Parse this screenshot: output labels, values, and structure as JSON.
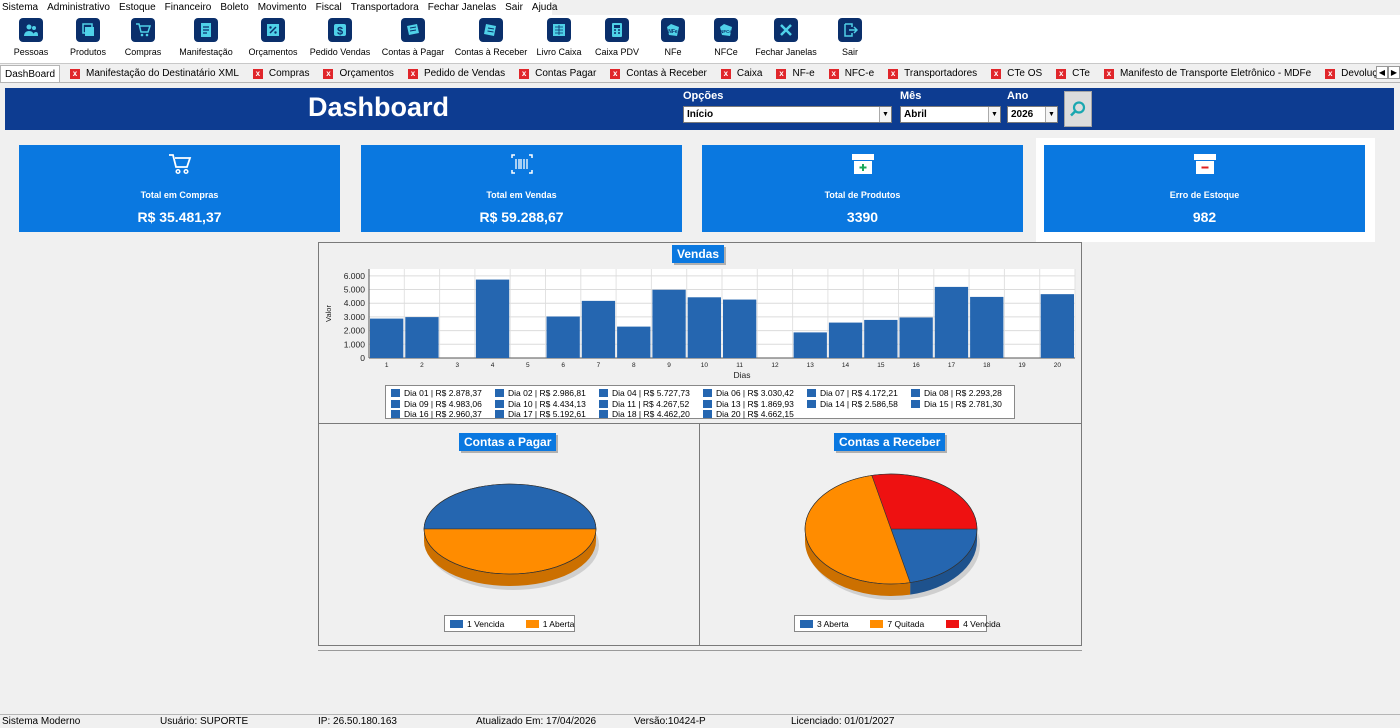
{
  "menu": [
    "Sistema",
    "Administrativo",
    "Estoque",
    "Financeiro",
    "Boleto",
    "Movimento",
    "Fiscal",
    "Transportadora",
    "Fechar Janelas",
    "Sair",
    "Ajuda"
  ],
  "toolbar": [
    {
      "label": "Pessoas",
      "icon": "people-icon"
    },
    {
      "label": "Produtos",
      "icon": "products-icon"
    },
    {
      "label": "Compras",
      "icon": "cart-icon"
    },
    {
      "label": "Manifestação",
      "icon": "document-icon"
    },
    {
      "label": "Orçamentos",
      "icon": "percent-icon"
    },
    {
      "label": "Pedido Vendas",
      "icon": "dollar-icon"
    },
    {
      "label": "Contas à Pagar",
      "icon": "bills-icon"
    },
    {
      "label": "Contas à Receber",
      "icon": "receivable-icon"
    },
    {
      "label": "Livro Caixa",
      "icon": "ledger-icon"
    },
    {
      "label": "Caixa PDV",
      "icon": "calculator-icon"
    },
    {
      "label": "NFe",
      "icon": "nfe-icon"
    },
    {
      "label": "NFCe",
      "icon": "nfce-icon"
    },
    {
      "label": "Fechar Janelas",
      "icon": "close-windows-icon"
    },
    {
      "label": "Sair",
      "icon": "exit-icon"
    }
  ],
  "tabs": [
    "DashBoard",
    "Manifestação do Destinatário XML",
    "Compras",
    "Orçamentos",
    "Pedido de Vendas",
    "Contas Pagar",
    "Contas à Receber",
    "Caixa",
    "NF-e",
    "NFC-e",
    "Transportadores",
    "CTe OS",
    "CTe",
    "Manifesto de Transporte Eletrônico - MDFe",
    "Devolução de Venda"
  ],
  "header": {
    "title": "Dashboard",
    "opcoes_label": "Opções",
    "opcoes_value": "Início",
    "mes_label": "Mês",
    "mes_value": "Abril",
    "ano_label": "Ano",
    "ano_value": "2026"
  },
  "cards": [
    {
      "label": "Total em Compras",
      "value": "R$ 35.481,37",
      "icon": "cart-icon"
    },
    {
      "label": "Total em Vendas",
      "value": "R$ 59.288,67",
      "icon": "barcode-icon"
    },
    {
      "label": "Total de Produtos",
      "value": "3390",
      "icon": "box-plus-icon"
    },
    {
      "label": "Erro de Estoque",
      "value": "982",
      "icon": "box-minus-icon"
    }
  ],
  "colors": {
    "header": "#0d3c91",
    "card": "#0a78e0",
    "bar": "#2566b0",
    "orange": "#ff8c00",
    "red": "#ee1111"
  },
  "chart_data": [
    {
      "type": "bar",
      "title": "Vendas",
      "xlabel": "Dias",
      "ylabel": "Valor",
      "ylim": [
        0,
        6500
      ],
      "yticks": [
        "0",
        "1.000",
        "2.000",
        "3.000",
        "4.000",
        "5.000",
        "6.000"
      ],
      "categories": [
        "1",
        "2",
        "3",
        "4",
        "5",
        "6",
        "7",
        "8",
        "9",
        "10",
        "11",
        "12",
        "13",
        "14",
        "15",
        "16",
        "17",
        "18",
        "19",
        "20"
      ],
      "values": [
        2878.37,
        2986.81,
        0,
        5727.73,
        0,
        3030.42,
        4172.21,
        2293.28,
        4983.06,
        4434.13,
        4267.52,
        0,
        1869.93,
        2586.58,
        2781.3,
        2960.37,
        5192.61,
        4462.2,
        0,
        4662.15
      ],
      "legend": [
        "Dia 01 | R$ 2.878,37",
        "Dia 02 | R$ 2.986,81",
        "Dia 04 | R$ 5.727,73",
        "Dia 06 | R$ 3.030,42",
        "Dia 07 | R$ 4.172,21",
        "Dia 08 | R$ 2.293,28",
        "Dia 09 | R$ 4.983,06",
        "Dia 10 | R$ 4.434,13",
        "Dia 11 | R$ 4.267,52",
        "Dia 13 | R$ 1.869,93",
        "Dia 14 | R$ 2.586,58",
        "Dia 15 | R$ 2.781,30",
        "Dia 16 | R$ 2.960,37",
        "Dia 17 | R$ 5.192,61",
        "Dia 18 | R$ 4.462,20",
        "Dia 20 | R$ 4.662,15"
      ],
      "grid": true
    },
    {
      "type": "pie",
      "title": "Contas a Pagar",
      "categories": [
        "Vencida",
        "Aberta"
      ],
      "values": [
        1,
        1
      ],
      "legend": [
        "1 Vencida",
        "1 Aberta"
      ],
      "colors": [
        "#2566b0",
        "#ff8c00"
      ]
    },
    {
      "type": "pie",
      "title": "Contas a Receber",
      "categories": [
        "Aberta",
        "Quitada",
        "Vencida"
      ],
      "values": [
        3,
        7,
        4
      ],
      "legend": [
        "3 Aberta",
        "7 Quitada",
        "4 Vencida"
      ],
      "colors": [
        "#2566b0",
        "#ff8c00",
        "#ee1111"
      ]
    }
  ],
  "status": {
    "system": "Sistema Moderno",
    "user": "Usuário: SUPORTE",
    "ip": "IP: 26.50.180.163",
    "updated": "Atualizado Em: 17/04/2026",
    "version": "Versão:10424-P",
    "license": "Licenciado: 01/01/2027"
  }
}
